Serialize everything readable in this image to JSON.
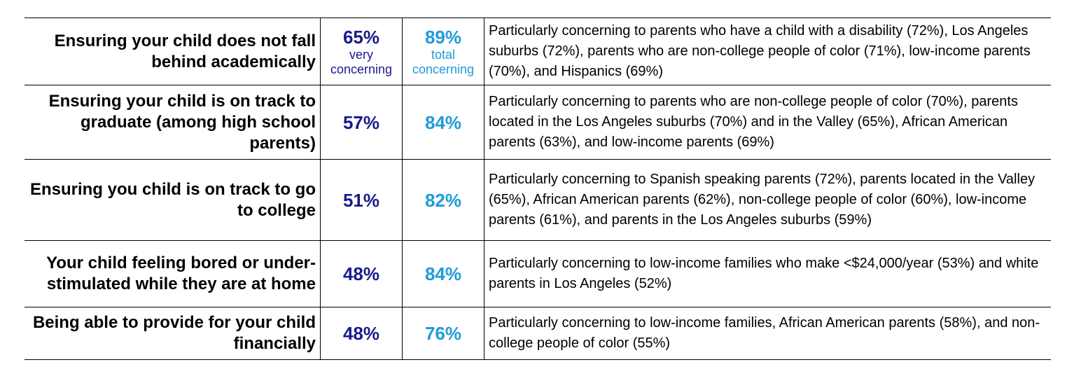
{
  "rows": [
    {
      "issue": "Ensuring your child does not fall behind academically",
      "very_concerning": "65%",
      "very_label": "very concerning",
      "total_concerning": "89%",
      "total_label": "total concerning",
      "note": "Particularly concerning to parents who have a child with a disability (72%), Los Angeles suburbs (72%), parents who are non-college people of color (71%), low-income parents (70%), and Hispanics (69%)"
    },
    {
      "issue": "Ensuring your child is on track to graduate (among high school parents)",
      "very_concerning": "57%",
      "total_concerning": "84%",
      "note": "Particularly concerning to parents who are non-college people of color (70%), parents located in the Los Angeles suburbs (70%) and in the Valley (65%), African American parents (63%), and low-income parents (69%)"
    },
    {
      "issue": "Ensuring you child is on track to go to college",
      "very_concerning": "51%",
      "total_concerning": "82%",
      "note": "Particularly concerning to Spanish speaking parents (72%), parents located in the Valley (65%), African American parents (62%), non-college people of color (60%), low-income parents (61%), and parents in the Los Angeles suburbs (59%)"
    },
    {
      "issue": "Your child feeling bored or under-stimulated while they are at home",
      "very_concerning": "48%",
      "total_concerning": "84%",
      "note": "Particularly concerning to low-income families who make <$24,000/year (53%) and white parents in Los Angeles (52%)"
    },
    {
      "issue": "Being able to provide for your child financially",
      "very_concerning": "48%",
      "total_concerning": "76%",
      "note": "Particularly concerning to low-income families, African American parents (58%), and non-college people of color (55%)"
    }
  ],
  "colors": {
    "very_concerning": "#1a1a8c",
    "total_concerning": "#1f9bd7"
  }
}
